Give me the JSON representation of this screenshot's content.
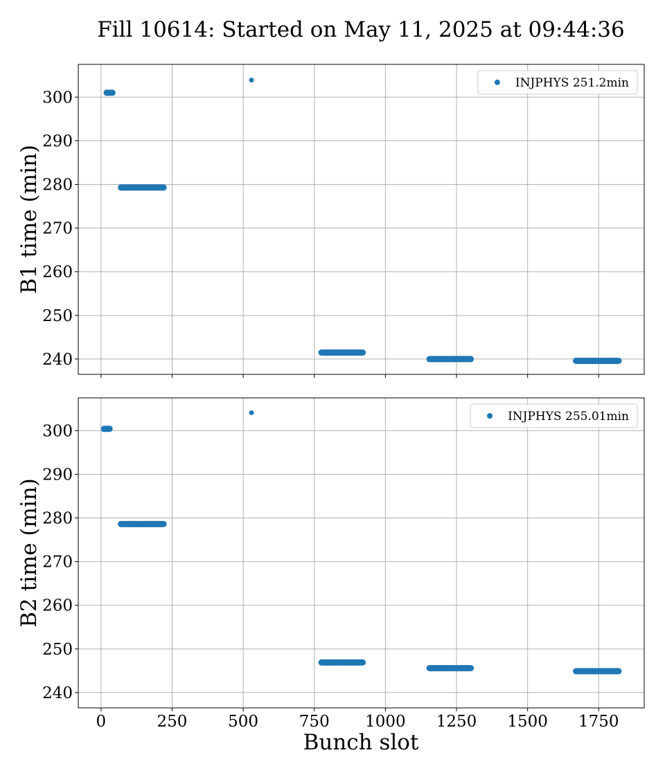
{
  "figure": {
    "title": "Fill 10614: Started on May 11, 2025 at 09:44:36",
    "xlabel": "Bunch slot"
  },
  "colors": {
    "series": "#1f77b4",
    "grid": "#b0b0b0",
    "axes": "#000000"
  },
  "chart_data": [
    {
      "type": "scatter",
      "ylabel": "B1 time (min)",
      "xlim": [
        -80,
        1910
      ],
      "ylim": [
        236.5,
        307.5
      ],
      "grid": true,
      "legend_position": "top-right",
      "xticks": [
        0,
        250,
        500,
        750,
        1000,
        1250,
        1500,
        1750
      ],
      "xtick_labels": [
        "0",
        "250",
        "500",
        "750",
        "1000",
        "1250",
        "1500",
        "1750"
      ],
      "show_xtick_labels": false,
      "yticks": [
        240,
        250,
        260,
        270,
        280,
        290,
        300
      ],
      "ytick_labels": [
        "240",
        "250",
        "260",
        "270",
        "280",
        "290",
        "300"
      ],
      "series": [
        {
          "name": "INJPHYS 251.2min",
          "points": [
            {
              "x": 529,
              "y": 303.9
            }
          ],
          "clusters": [
            {
              "x_start": 20,
              "x_end": 40,
              "y": 301.0
            },
            {
              "x_start": 70,
              "x_end": 150,
              "y": 279.3
            },
            {
              "x_start": 150,
              "x_end": 220,
              "y": 279.3
            },
            {
              "x_start": 775,
              "x_end": 845,
              "y": 241.5
            },
            {
              "x_start": 850,
              "x_end": 920,
              "y": 241.5
            },
            {
              "x_start": 1155,
              "x_end": 1225,
              "y": 240.0
            },
            {
              "x_start": 1230,
              "x_end": 1300,
              "y": 240.0
            },
            {
              "x_start": 1670,
              "x_end": 1745,
              "y": 239.6
            },
            {
              "x_start": 1750,
              "x_end": 1820,
              "y": 239.6
            }
          ]
        }
      ]
    },
    {
      "type": "scatter",
      "ylabel": "B2 time (min)",
      "xlim": [
        -80,
        1910
      ],
      "ylim": [
        236.5,
        307.5
      ],
      "grid": true,
      "legend_position": "top-right",
      "xticks": [
        0,
        250,
        500,
        750,
        1000,
        1250,
        1500,
        1750
      ],
      "xtick_labels": [
        "0",
        "250",
        "500",
        "750",
        "1000",
        "1250",
        "1500",
        "1750"
      ],
      "show_xtick_labels": true,
      "yticks": [
        240,
        250,
        260,
        270,
        280,
        290,
        300
      ],
      "ytick_labels": [
        "240",
        "250",
        "260",
        "270",
        "280",
        "290",
        "300"
      ],
      "series": [
        {
          "name": "INJPHYS 255.01min",
          "points": [
            {
              "x": 529,
              "y": 304.1
            }
          ],
          "clusters": [
            {
              "x_start": 10,
              "x_end": 30,
              "y": 300.4
            },
            {
              "x_start": 70,
              "x_end": 150,
              "y": 278.6
            },
            {
              "x_start": 150,
              "x_end": 220,
              "y": 278.6
            },
            {
              "x_start": 775,
              "x_end": 845,
              "y": 246.9
            },
            {
              "x_start": 850,
              "x_end": 920,
              "y": 246.9
            },
            {
              "x_start": 1155,
              "x_end": 1225,
              "y": 245.6
            },
            {
              "x_start": 1230,
              "x_end": 1300,
              "y": 245.6
            },
            {
              "x_start": 1670,
              "x_end": 1745,
              "y": 244.9
            },
            {
              "x_start": 1750,
              "x_end": 1820,
              "y": 244.9
            }
          ]
        }
      ]
    }
  ]
}
